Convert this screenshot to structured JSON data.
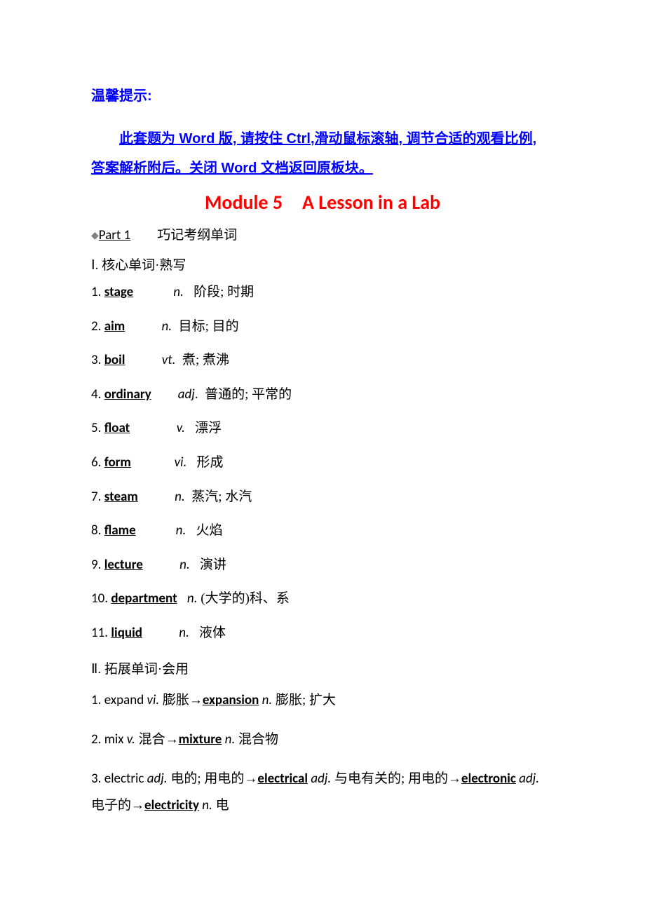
{
  "colors": {
    "tip": "#0000ff",
    "title": "#ff0000",
    "diamond": "#808080",
    "text": "#000000",
    "background": "#ffffff"
  },
  "fonts": {
    "cn_sans": "SimHei",
    "cn_serif": "SimSun",
    "en": "Calibri",
    "tip_size": 20,
    "title_size": 28,
    "body_size": 19
  },
  "tip": {
    "head": "温馨提示:",
    "body": "此套题为 Word 版, 请按住 Ctrl,滑动鼠标滚轴, 调节合适的观看比例, 答案解析附后。关闭 Word 文档返回原板块。"
  },
  "title": "Module 5 A Lesson in a Lab",
  "part1": {
    "diamond": "◆",
    "label": "Part 1",
    "cn": "巧记考纲单词"
  },
  "section1": {
    "roman": "Ⅰ",
    "label": ". 核心单词·熟写"
  },
  "vocab": [
    {
      "n": "1.",
      "word": "stage",
      "pad": "            ",
      "pos": "n.",
      "ppad": "   ",
      "cn": "阶段; 时期"
    },
    {
      "n": "2.",
      "word": "aim",
      "pad": "           ",
      "pos": "n.",
      "ppad": "  ",
      "cn": "目标; 目的"
    },
    {
      "n": "3.",
      "word": "boil",
      "pad": "           ",
      "pos": "vt.",
      "ppad": "  ",
      "cn": "煮; 煮沸"
    },
    {
      "n": "4.",
      "word": "ordinary",
      "pad": "        ",
      "pos": "adj",
      "ppad": ".  ",
      "cn": "普通的; 平常的"
    },
    {
      "n": "5.",
      "word": "float",
      "pad": "              ",
      "pos": "v.",
      "ppad": "   ",
      "cn": "漂浮"
    },
    {
      "n": "6.",
      "word": "form",
      "pad": "             ",
      "pos": "vi.",
      "ppad": "   ",
      "cn": "形成"
    },
    {
      "n": "7.",
      "word": "steam",
      "pad": "           ",
      "pos": "n.",
      "ppad": "  ",
      "cn": "蒸汽; 水汽"
    },
    {
      "n": "8.",
      "word": "flame",
      "pad": "            ",
      "pos": "n.",
      "ppad": "   ",
      "cn": "火焰"
    },
    {
      "n": "9.",
      "word": "lecture",
      "pad": "           ",
      "pos": "n.",
      "ppad": "   ",
      "cn": "演讲"
    },
    {
      "n": "10.",
      "word": "department",
      "pad": "   ",
      "pos": "n.",
      "ppad": " ",
      "cn": "(大学的)科、系"
    },
    {
      "n": "11.",
      "word": "liquid",
      "pad": "           ",
      "pos": "n.",
      "ppad": "   ",
      "cn": "液体"
    }
  ],
  "section2": {
    "roman": "Ⅱ",
    "label": ". 拓展单词·会用"
  },
  "extended": [
    {
      "parts": [
        {
          "t": "num",
          "v": "1. "
        },
        {
          "t": "plain",
          "v": "expand "
        },
        {
          "t": "pos",
          "v": "vi."
        },
        {
          "t": "cn",
          "v": "   膨胀"
        },
        {
          "t": "arrow",
          "v": "→"
        },
        {
          "t": "word",
          "v": "expansion"
        },
        {
          "t": "plain",
          "v": " "
        },
        {
          "t": "pos",
          "v": "n."
        },
        {
          "t": "cn",
          "v": "  膨胀; 扩大"
        }
      ]
    },
    {
      "parts": [
        {
          "t": "num",
          "v": "2. "
        },
        {
          "t": "plain",
          "v": "mix "
        },
        {
          "t": "pos",
          "v": "v."
        },
        {
          "t": "cn",
          "v": "  混合"
        },
        {
          "t": "arrow",
          "v": "→"
        },
        {
          "t": "word",
          "v": "mixture"
        },
        {
          "t": "plain",
          "v": " "
        },
        {
          "t": "pos",
          "v": "n."
        },
        {
          "t": "cn",
          "v": "  混合物"
        }
      ]
    },
    {
      "parts": [
        {
          "t": "num",
          "v": "3. "
        },
        {
          "t": "plain",
          "v": "electric "
        },
        {
          "t": "pos",
          "v": "adj."
        },
        {
          "t": "cn",
          "v": "   电的; 用电的"
        },
        {
          "t": "arrow",
          "v": "→"
        },
        {
          "t": "word",
          "v": "electrical"
        },
        {
          "t": "plain",
          "v": " "
        },
        {
          "t": "pos",
          "v": "adj."
        },
        {
          "t": "cn",
          "v": "  与电有关的; 用电的"
        },
        {
          "t": "arrow",
          "v": "→"
        },
        {
          "t": "word",
          "v": "electronic"
        },
        {
          "t": "plain",
          "v": " "
        },
        {
          "t": "pos",
          "v": "adj."
        },
        {
          "t": "cn",
          "v": "  电子的"
        },
        {
          "t": "arrow",
          "v": "→"
        },
        {
          "t": "word",
          "v": "electricity"
        },
        {
          "t": "plain",
          "v": " "
        },
        {
          "t": "pos",
          "v": "n."
        },
        {
          "t": "cn",
          "v": "  电"
        }
      ]
    }
  ]
}
